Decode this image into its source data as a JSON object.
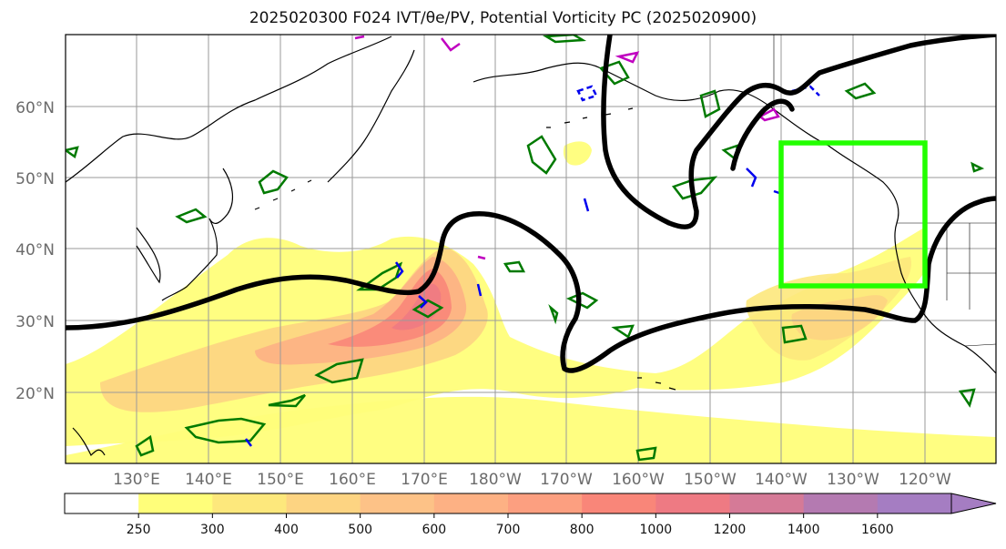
{
  "title": "2025020300 F024 IVT/θe/PV, Potential Vorticity PC (2025020900)",
  "lat_labels": [
    "60°N",
    "50°N",
    "40°N",
    "30°N",
    "20°N"
  ],
  "lon_labels": [
    "130°E",
    "140°E",
    "150°E",
    "160°E",
    "170°E",
    "180°W",
    "170°W",
    "160°W",
    "150°W",
    "140°W",
    "130°W",
    "120°W"
  ],
  "colorbar": {
    "ticks": [
      "250",
      "300",
      "400",
      "500",
      "600",
      "700",
      "800",
      "1000",
      "1200",
      "1400",
      "1600"
    ],
    "colors": [
      "#ffffff",
      "#fffe7a",
      "#fde87c",
      "#fdd482",
      "#fdc287",
      "#fdb184",
      "#fc9f80",
      "#f98679",
      "#ee7a83",
      "#d57a97",
      "#b47ab1",
      "#a57dc2"
    ]
  },
  "colors": {
    "pv_contour": "#000000",
    "positive_contour": "#007a00",
    "negative_contour": "#0000ee",
    "magenta_contour": "#c000c0",
    "target_box": "#22ff00"
  },
  "map_extent": {
    "lon_min": 120,
    "lon_max": 250,
    "lat_min": 10,
    "lat_max": 70
  }
}
